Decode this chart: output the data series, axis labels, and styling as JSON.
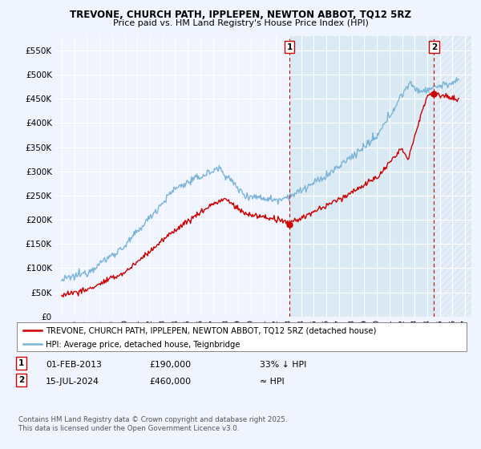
{
  "title": "TREVONE, CHURCH PATH, IPPLEPEN, NEWTON ABBOT, TQ12 5RZ",
  "subtitle": "Price paid vs. HM Land Registry's House Price Index (HPI)",
  "legend_line1": "TREVONE, CHURCH PATH, IPPLEPEN, NEWTON ABBOT, TQ12 5RZ (detached house)",
  "legend_line2": "HPI: Average price, detached house, Teignbridge",
  "annotation1_label": "1",
  "annotation1_date": "01-FEB-2013",
  "annotation1_price": "£190,000",
  "annotation1_note": "33% ↓ HPI",
  "annotation2_label": "2",
  "annotation2_date": "15-JUL-2024",
  "annotation2_price": "£460,000",
  "annotation2_note": "≈ HPI",
  "copyright": "Contains HM Land Registry data © Crown copyright and database right 2025.\nThis data is licensed under the Open Government Licence v3.0.",
  "hpi_color": "#7ab4d8",
  "price_color": "#cc0000",
  "annotation_line_color": "#cc0000",
  "background_color": "#f0f4ff",
  "plot_bg_color": "#f0f4ff",
  "shaded_bg_color": "#daeaf5",
  "grid_color": "#ffffff",
  "ylim": [
    0,
    580000
  ],
  "yticks": [
    0,
    50000,
    100000,
    150000,
    200000,
    250000,
    300000,
    350000,
    400000,
    450000,
    500000,
    550000
  ],
  "xlim_start": 1994.5,
  "xlim_end": 2027.5,
  "marker1_x": 2013.08,
  "marker1_y": 190000,
  "marker2_x": 2024.54,
  "marker2_y": 460000
}
